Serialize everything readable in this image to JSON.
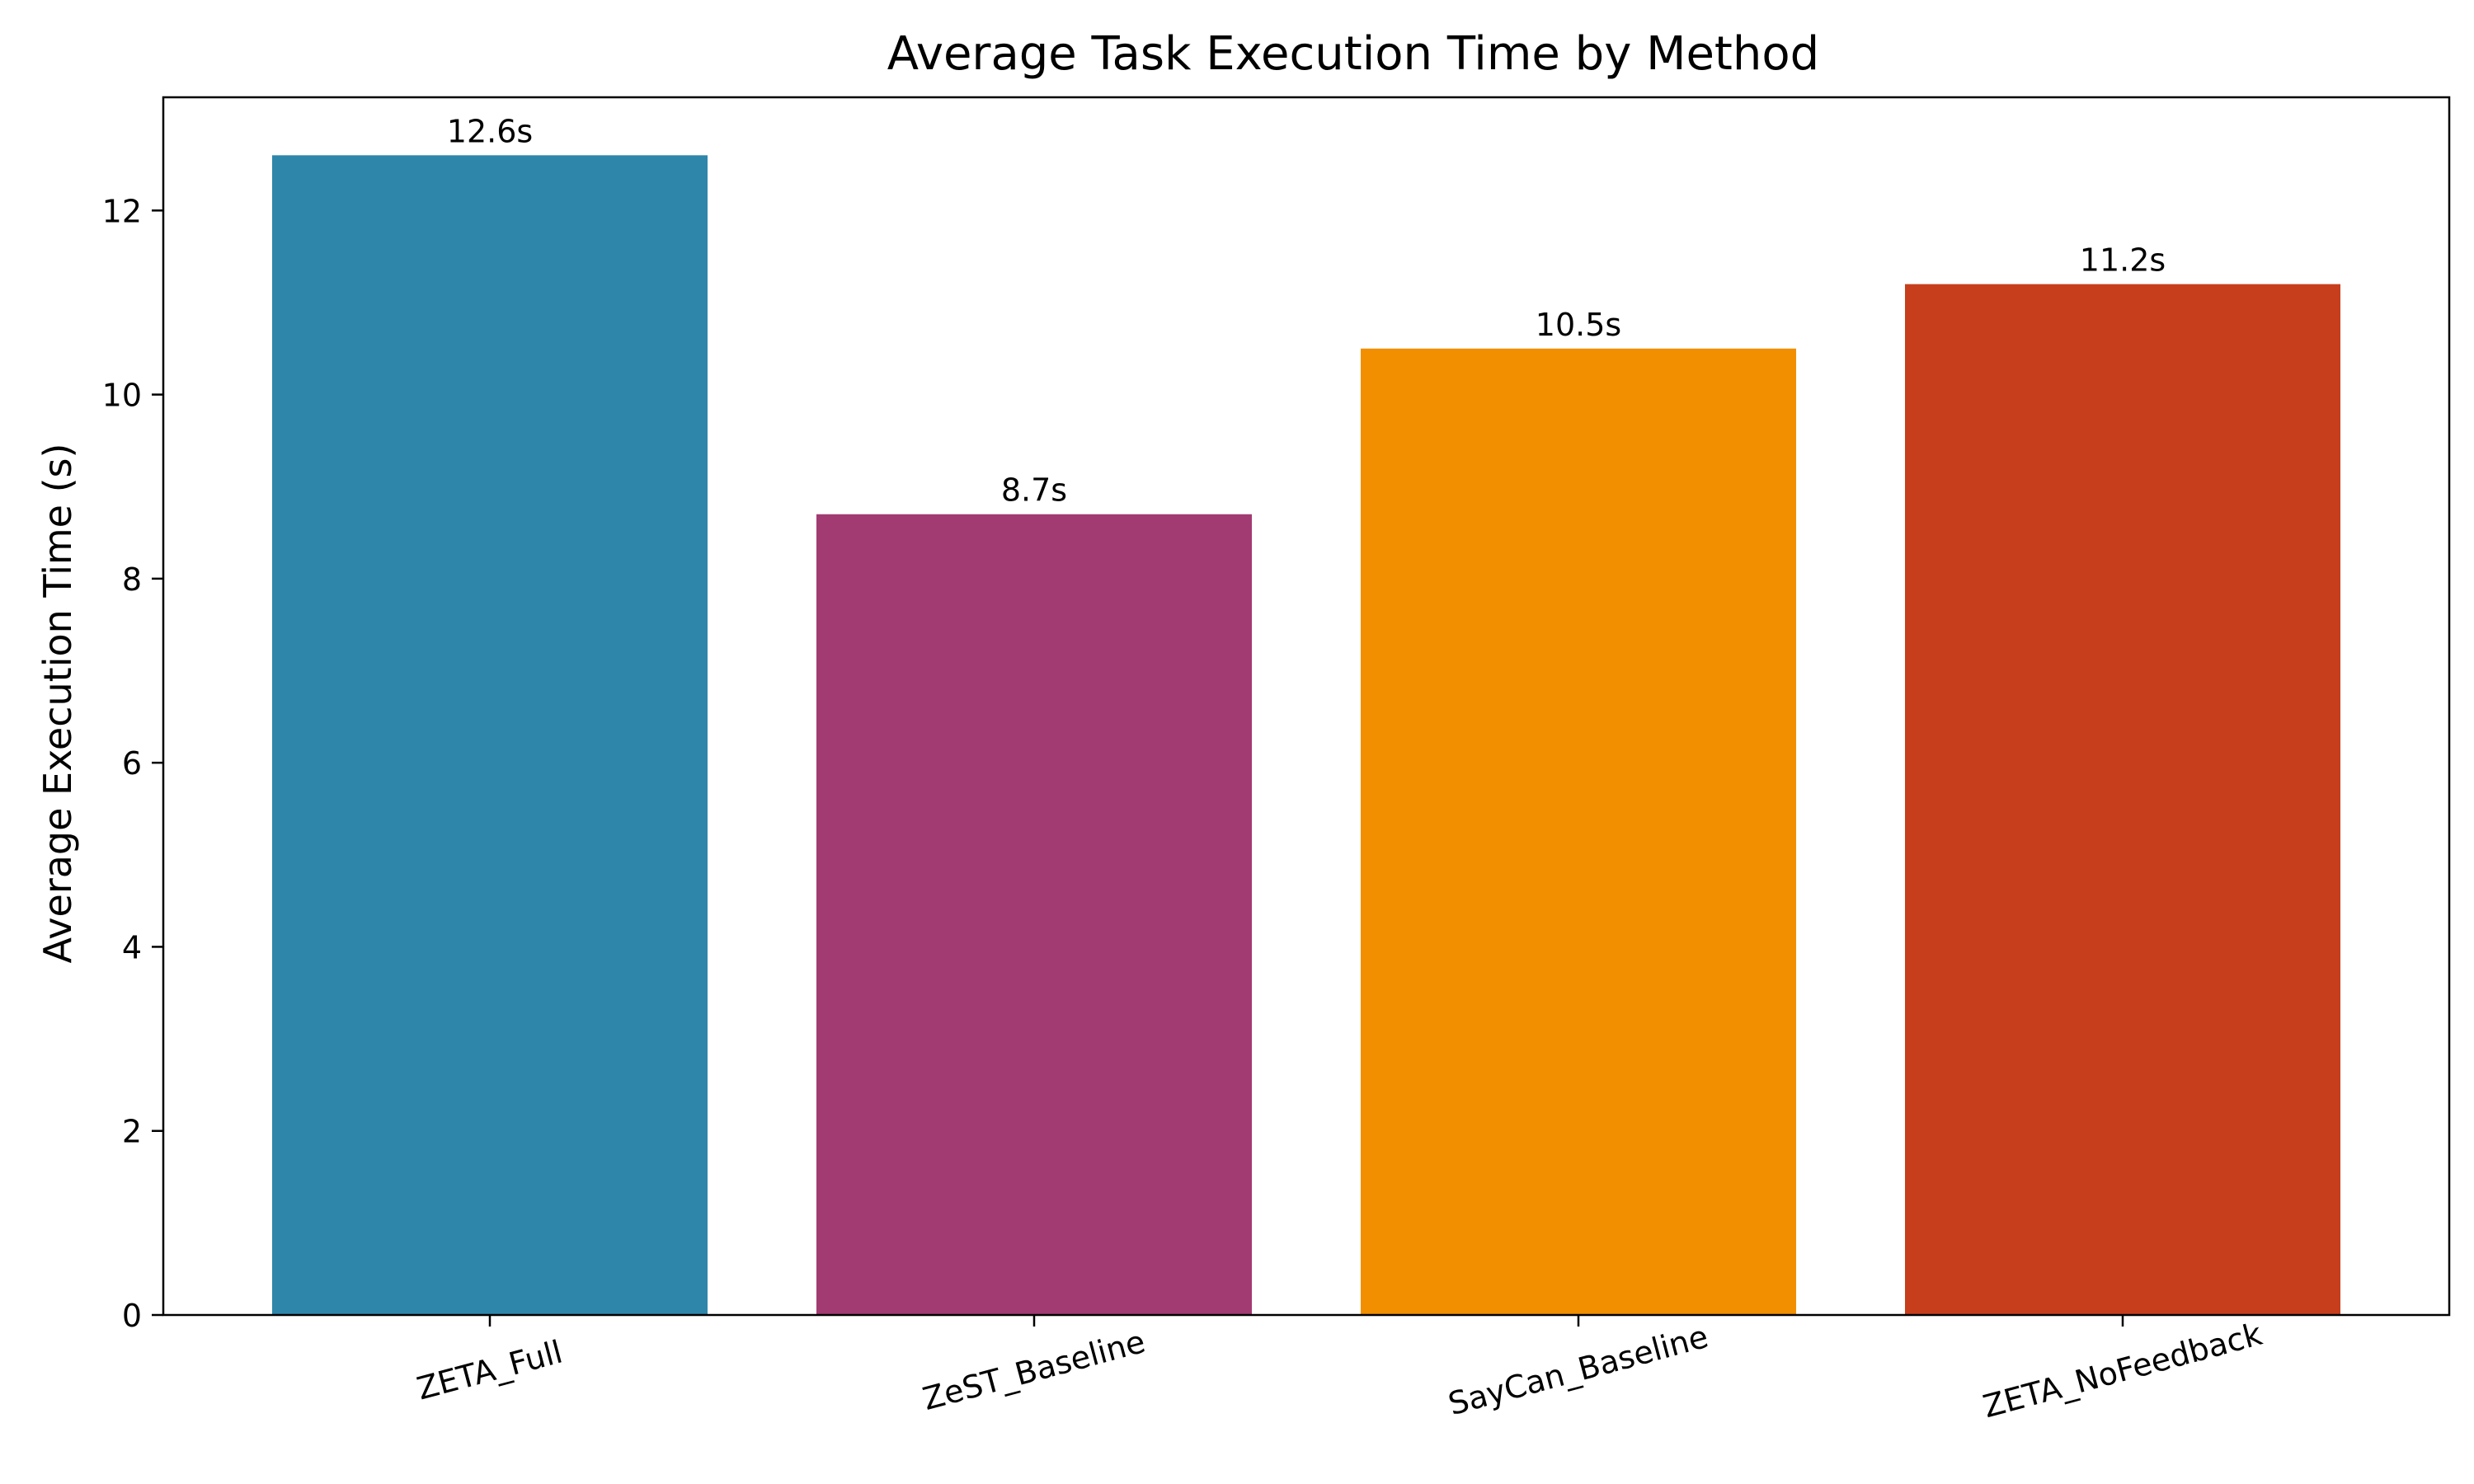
{
  "chart_data": {
    "type": "bar",
    "title": "Average Task Execution Time by Method",
    "xlabel": "",
    "ylabel": "Average Execution Time (s)",
    "categories": [
      "ZETA_Full",
      "ZeST_Baseline",
      "SayCan_Baseline",
      "ZETA_NoFeedback"
    ],
    "values": [
      12.6,
      8.7,
      10.5,
      11.2
    ],
    "value_labels": [
      "12.6s",
      "8.7s",
      "10.5s",
      "11.2s"
    ],
    "colors": [
      "#2E86AB",
      "#A23B72",
      "#F18F01",
      "#C73E1D"
    ],
    "ylim": [
      0,
      13.23
    ],
    "yticks": [
      0,
      2,
      4,
      6,
      8,
      10,
      12
    ],
    "grid": false,
    "legend": "none"
  }
}
